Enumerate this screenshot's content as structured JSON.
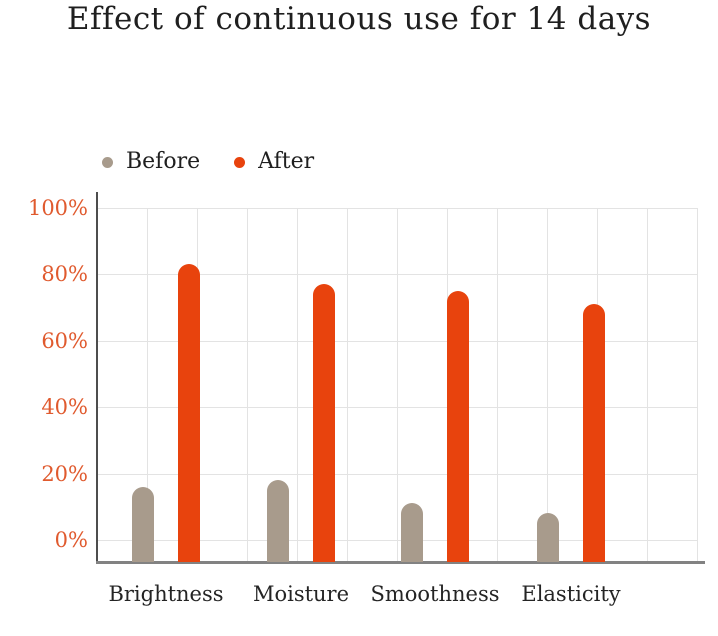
{
  "chart_data": {
    "type": "bar",
    "title": "Effect of continuous use for 14 days",
    "categories": [
      "Brightness",
      "Moisture",
      "Smoothness",
      "Elasticity"
    ],
    "series": [
      {
        "name": "Before",
        "color": "#a89b8c",
        "values": [
          16,
          18,
          11,
          8
        ]
      },
      {
        "name": "After",
        "color": "#e8430d",
        "values": [
          83,
          77,
          75,
          71
        ]
      }
    ],
    "y_ticks": [
      "100%",
      "80%",
      "60%",
      "40%",
      "20%",
      "0%"
    ],
    "y_tick_values": [
      100,
      80,
      60,
      40,
      20,
      0
    ],
    "ylim": [
      0,
      100
    ],
    "xlabel": "",
    "ylabel": "",
    "grid": true,
    "legend_position": "top",
    "colors": {
      "tick_label": "#e05a2e",
      "grid_line": "#e3e3e3",
      "y_axis_line": "#4d4d4d",
      "x_axis_line": "#828282",
      "text": "#1f1f1f",
      "background": "#ffffff"
    }
  }
}
